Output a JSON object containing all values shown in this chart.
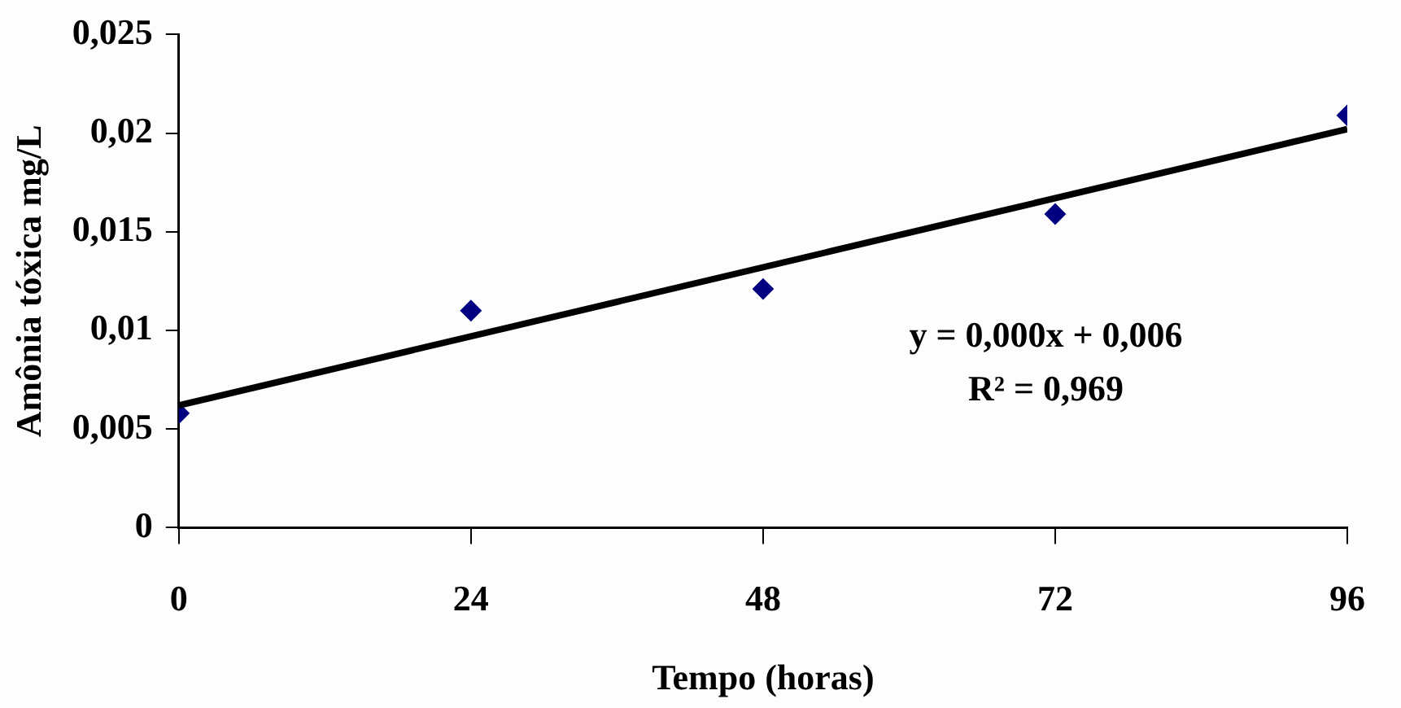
{
  "chart_data": {
    "type": "scatter",
    "xlabel": "Tempo (horas)",
    "ylabel": "Amônia tóxica mg/L",
    "x": [
      0,
      24,
      48,
      72,
      96
    ],
    "series": [
      {
        "color": "#000080",
        "values": [
          0.0058,
          0.011,
          0.0121,
          0.0159,
          0.0209
        ]
      },
      {
        "type": "line",
        "color": "#000000",
        "x": [
          0,
          96
        ],
        "values": [
          0.0062,
          0.0202
        ],
        "marker": "none"
      }
    ],
    "marker": "diamond",
    "line_style": "solid",
    "xlim": [
      0,
      96
    ],
    "xticks": [
      0,
      24,
      48,
      72,
      96
    ],
    "ylim": [
      0,
      0.025
    ],
    "yticks": [
      0,
      {
        "value": 0.005,
        "label": "0,005"
      },
      {
        "value": 0.01,
        "label": "0,01"
      },
      {
        "value": 0.015,
        "label": "0,015"
      },
      {
        "value": 0.02,
        "label": "0,02"
      },
      {
        "value": 0.025,
        "label": "0,025"
      }
    ],
    "annotations": [
      "y = 0,000x + 0,006",
      "R² = 0,969"
    ]
  }
}
